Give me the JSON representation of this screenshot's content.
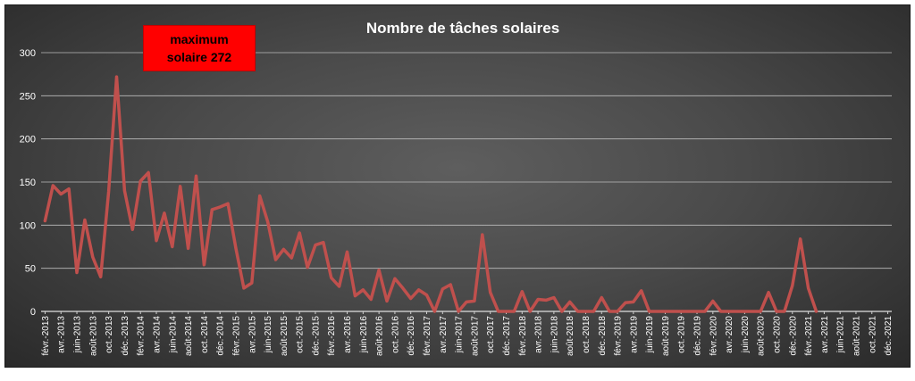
{
  "chart_data": {
    "type": "line",
    "title": "Nombre de tâches solaires",
    "annotation": {
      "line1": "maximum",
      "line2": "solaire  272"
    },
    "ylim": [
      0,
      300
    ],
    "yticks": [
      0,
      50,
      100,
      150,
      200,
      250,
      300
    ],
    "grid": true,
    "colors": {
      "line": "#c0504d",
      "annotation_bg": "#ff0000"
    },
    "x_labels": [
      "févr.-2013",
      "avr.-2013",
      "juin-2013",
      "août-2013",
      "oct.-2013",
      "déc.-2013",
      "févr.-2014",
      "avr.-2014",
      "juin-2014",
      "août-2014",
      "oct.-2014",
      "déc.-2014",
      "févr.-2015",
      "avr.-2015",
      "juin-2015",
      "août-2015",
      "oct.-2015",
      "déc.-2015",
      "févr.-2016",
      "avr.-2016",
      "juin-2016",
      "août-2016",
      "oct.-2016",
      "déc.-2016",
      "févr.-2017",
      "avr.-2017",
      "juin-2017",
      "août-2017",
      "oct.-2017",
      "déc.-2017",
      "févr.-2018",
      "avr.-2018",
      "juin-2018",
      "août-2018",
      "oct.-2018",
      "déc.-2018",
      "févr.-2019",
      "avr.-2019",
      "juin-2019",
      "août-2019",
      "oct.-2019",
      "déc.-2019",
      "févr.-2020",
      "avr.-2020",
      "juin-2020",
      "août-2020",
      "oct.-2020",
      "déc.-2020",
      "févr.-2021",
      "avr.-2021",
      "juin-2021",
      "août-2021",
      "oct.-2021",
      "déc.-2021"
    ],
    "series": [
      {
        "values": [
          105,
          146,
          136,
          142,
          45,
          106,
          63,
          40,
          139,
          272,
          140,
          95,
          151,
          161,
          82,
          114,
          75,
          145,
          73,
          157,
          54,
          118,
          121,
          125,
          73,
          27,
          33,
          134,
          104,
          60,
          72,
          62,
          91,
          51,
          77,
          80,
          39,
          29,
          69,
          18,
          25,
          14,
          48,
          12,
          38,
          27,
          15,
          25,
          19,
          0,
          26,
          31,
          0,
          11,
          12,
          89,
          22,
          0,
          0,
          0,
          23,
          0,
          14,
          13,
          16,
          0,
          11,
          0,
          0,
          0,
          16,
          0,
          0,
          10,
          11,
          24,
          0,
          0,
          0,
          0,
          0,
          0,
          0,
          0,
          12,
          0,
          0,
          0,
          0,
          0,
          0,
          22,
          0,
          0,
          30,
          84,
          27,
          0
        ]
      }
    ]
  }
}
